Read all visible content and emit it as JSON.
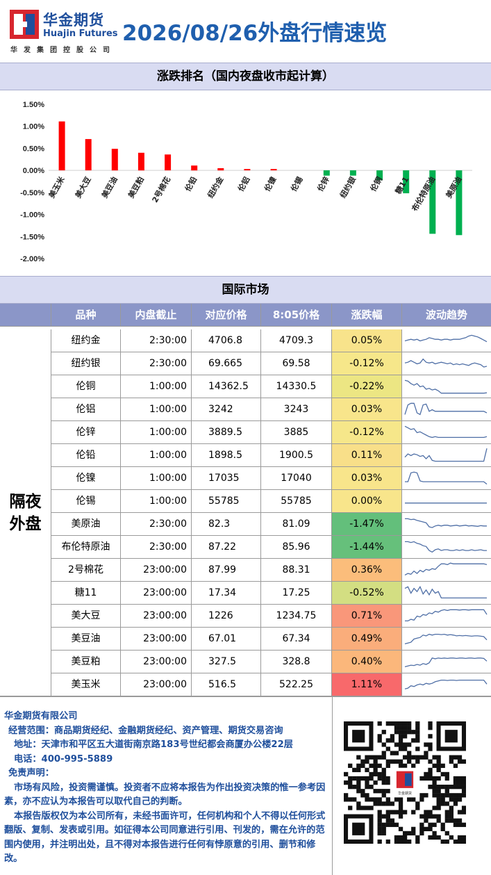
{
  "header": {
    "company_cn": "华金期货",
    "company_en": "Huajin Futures",
    "company_tag": "华发集团控股公司",
    "report_title": "2026/08/26外盘行情速览"
  },
  "ranking": {
    "title": "涨跌排名（国内夜盘收市起计算）"
  },
  "chart_data": {
    "type": "bar",
    "categories": [
      "美玉米",
      "美大豆",
      "美豆油",
      "美豆粕",
      "2号棉花",
      "伦铅",
      "纽约金",
      "伦铝",
      "伦镍",
      "伦锡",
      "伦锌",
      "纽约银",
      "伦铜",
      "糖11",
      "布伦特原油",
      "美原油"
    ],
    "values": [
      1.11,
      0.71,
      0.49,
      0.4,
      0.36,
      0.11,
      0.05,
      0.03,
      0.03,
      0.0,
      -0.12,
      -0.12,
      -0.22,
      -0.52,
      -1.44,
      -1.47
    ],
    "ylim": [
      -2.0,
      1.5
    ],
    "yticks": [
      "1.50%",
      "1.00%",
      "0.50%",
      "0.00%",
      "-0.50%",
      "-1.00%",
      "-1.50%",
      "-2.00%"
    ],
    "ytick_values": [
      1.5,
      1.0,
      0.5,
      0.0,
      -0.5,
      -1.0,
      -1.5,
      -2.0
    ],
    "positive_color": "#ff0000",
    "negative_color": "#00b050",
    "grid": false
  },
  "intl": {
    "title": "国际市场",
    "group_label": "隔夜外盘",
    "headers": [
      "",
      "品种",
      "内盘截止",
      "对应价格",
      "8:05价格",
      "涨跌幅",
      "波动趋势"
    ],
    "rows": [
      {
        "name": "纽约金",
        "cutoff": "2:30:00",
        "ref_price": "4706.8",
        "price_805": "4709.3",
        "change": "0.05%",
        "change_value": 0.05,
        "color": "#f8e38b",
        "trend": [
          0.5,
          0.55,
          0.6,
          0.55,
          0.6,
          0.5,
          0.55,
          0.6,
          0.7,
          0.65,
          0.6,
          0.6,
          0.55,
          0.6,
          0.6,
          0.55,
          0.6,
          0.6,
          0.6,
          0.65,
          0.7,
          0.8,
          0.85,
          0.8,
          0.75,
          0.65,
          0.55,
          0.45
        ]
      },
      {
        "name": "纽约银",
        "cutoff": "2:30:00",
        "ref_price": "69.665",
        "price_805": "69.58",
        "change": "-0.12%",
        "change_value": -0.12,
        "color": "#f6e78a",
        "trend": [
          0.55,
          0.6,
          0.7,
          0.6,
          0.5,
          0.55,
          0.8,
          0.6,
          0.55,
          0.6,
          0.5,
          0.55,
          0.6,
          0.55,
          0.5,
          0.55,
          0.45,
          0.5,
          0.45,
          0.5,
          0.45,
          0.4,
          0.5,
          0.55,
          0.5,
          0.45,
          0.3,
          0.35
        ]
      },
      {
        "name": "伦铜",
        "cutoff": "1:00:00",
        "ref_price": "14362.5",
        "price_805": "14330.5",
        "change": "-0.22%",
        "change_value": -0.22,
        "color": "#ece683",
        "trend": [
          0.9,
          0.85,
          0.7,
          0.6,
          0.7,
          0.5,
          0.55,
          0.35,
          0.4,
          0.3,
          0.35,
          0.25,
          0.1,
          0.1,
          0.1,
          0.1,
          0.1,
          0.1,
          0.1,
          0.1,
          0.1,
          0.1,
          0.1,
          0.1,
          0.1,
          0.1,
          0.1,
          0.12
        ]
      },
      {
        "name": "伦铝",
        "cutoff": "1:00:00",
        "ref_price": "3242",
        "price_805": "3243",
        "change": "0.03%",
        "change_value": 0.03,
        "color": "#f8e58b",
        "trend": [
          0.2,
          0.8,
          0.9,
          0.9,
          0.3,
          0.2,
          0.8,
          0.85,
          0.4,
          0.5,
          0.4,
          0.4,
          0.4,
          0.4,
          0.4,
          0.4,
          0.4,
          0.4,
          0.4,
          0.4,
          0.4,
          0.4,
          0.4,
          0.4,
          0.4,
          0.4,
          0.4,
          0.3
        ]
      },
      {
        "name": "伦锌",
        "cutoff": "1:00:00",
        "ref_price": "3889.5",
        "price_805": "3885",
        "change": "-0.12%",
        "change_value": -0.12,
        "color": "#f6e78a",
        "trend": [
          0.9,
          0.8,
          0.7,
          0.75,
          0.5,
          0.55,
          0.45,
          0.35,
          0.25,
          0.2,
          0.25,
          0.2,
          0.2,
          0.2,
          0.2,
          0.2,
          0.2,
          0.2,
          0.2,
          0.2,
          0.2,
          0.2,
          0.2,
          0.2,
          0.2,
          0.2,
          0.2,
          0.25
        ]
      },
      {
        "name": "伦铅",
        "cutoff": "1:00:00",
        "ref_price": "1898.5",
        "price_805": "1900.5",
        "change": "0.11%",
        "change_value": 0.11,
        "color": "#f8df89",
        "trend": [
          0.4,
          0.6,
          0.5,
          0.6,
          0.55,
          0.45,
          0.5,
          0.3,
          0.5,
          0.2,
          0.15,
          0.15,
          0.15,
          0.15,
          0.15,
          0.15,
          0.15,
          0.15,
          0.15,
          0.15,
          0.15,
          0.15,
          0.15,
          0.15,
          0.15,
          0.15,
          0.15,
          0.95
        ]
      },
      {
        "name": "伦镍",
        "cutoff": "1:00:00",
        "ref_price": "17035",
        "price_805": "17040",
        "change": "0.03%",
        "change_value": 0.03,
        "color": "#f8e58b",
        "trend": [
          0.3,
          0.3,
          0.85,
          0.9,
          0.85,
          0.35,
          0.3,
          0.3,
          0.3,
          0.3,
          0.3,
          0.3,
          0.3,
          0.3,
          0.3,
          0.3,
          0.3,
          0.3,
          0.3,
          0.3,
          0.3,
          0.3,
          0.3,
          0.3,
          0.3,
          0.3,
          0.3,
          0.15
        ]
      },
      {
        "name": "伦锡",
        "cutoff": "1:00:00",
        "ref_price": "55785",
        "price_805": "55785",
        "change": "0.00%",
        "change_value": 0.0,
        "color": "#f8e58b",
        "trend": [
          0.4,
          0.4,
          0.4,
          0.4,
          0.4,
          0.4,
          0.4,
          0.4,
          0.4,
          0.4,
          0.4,
          0.4,
          0.4,
          0.4,
          0.4,
          0.4,
          0.4,
          0.4,
          0.4,
          0.4,
          0.4,
          0.4,
          0.4,
          0.4,
          0.4,
          0.4,
          0.4,
          0.4
        ]
      },
      {
        "name": "美原油",
        "cutoff": "2:30:00",
        "ref_price": "82.3",
        "price_805": "81.09",
        "change": "-1.47%",
        "change_value": -1.47,
        "color": "#63bf7b",
        "trend": [
          0.85,
          0.85,
          0.8,
          0.82,
          0.75,
          0.7,
          0.65,
          0.6,
          0.35,
          0.3,
          0.4,
          0.45,
          0.4,
          0.45,
          0.45,
          0.4,
          0.42,
          0.45,
          0.4,
          0.42,
          0.45,
          0.4,
          0.42,
          0.4,
          0.38,
          0.42,
          0.4,
          0.4
        ]
      },
      {
        "name": "布伦特原油",
        "cutoff": "2:30:00",
        "ref_price": "87.22",
        "price_805": "85.96",
        "change": "-1.44%",
        "change_value": -1.44,
        "color": "#66c07b",
        "trend": [
          0.85,
          0.85,
          0.8,
          0.85,
          0.75,
          0.7,
          0.6,
          0.55,
          0.3,
          0.2,
          0.35,
          0.4,
          0.3,
          0.35,
          0.35,
          0.3,
          0.3,
          0.35,
          0.3,
          0.35,
          0.3,
          0.3,
          0.35,
          0.3,
          0.32,
          0.35,
          0.3,
          0.3
        ]
      },
      {
        "name": "2号棉花",
        "cutoff": "23:00:00",
        "ref_price": "87.99",
        "price_805": "88.31",
        "change": "0.36%",
        "change_value": 0.36,
        "color": "#fbbd7b",
        "trend": [
          0.2,
          0.3,
          0.25,
          0.45,
          0.3,
          0.5,
          0.4,
          0.55,
          0.5,
          0.6,
          0.55,
          0.75,
          0.9,
          0.9,
          0.85,
          0.95,
          0.9,
          0.9,
          0.9,
          0.9,
          0.9,
          0.9,
          0.9,
          0.9,
          0.9,
          0.9,
          0.9,
          0.85
        ]
      },
      {
        "name": "糖11",
        "cutoff": "23:00:00",
        "ref_price": "17.34",
        "price_805": "17.25",
        "change": "-0.52%",
        "change_value": -0.52,
        "color": "#d3de82",
        "trend": [
          0.8,
          0.9,
          0.5,
          0.8,
          0.6,
          0.9,
          0.45,
          0.7,
          0.4,
          0.75,
          0.5,
          0.6,
          0.2,
          0.2,
          0.2,
          0.2,
          0.2,
          0.2,
          0.2,
          0.2,
          0.2,
          0.2,
          0.2,
          0.2,
          0.2,
          0.2,
          0.2,
          0.2
        ]
      },
      {
        "name": "美大豆",
        "cutoff": "23:00:00",
        "ref_price": "1226",
        "price_805": "1234.75",
        "change": "0.71%",
        "change_value": 0.71,
        "color": "#f9977a",
        "trend": [
          0.2,
          0.2,
          0.3,
          0.25,
          0.5,
          0.45,
          0.6,
          0.55,
          0.7,
          0.65,
          0.8,
          0.75,
          0.85,
          0.9,
          0.85,
          0.9,
          0.9,
          0.9,
          0.88,
          0.9,
          0.9,
          0.88,
          0.9,
          0.9,
          0.9,
          0.9,
          0.9,
          0.6
        ]
      },
      {
        "name": "美豆油",
        "cutoff": "23:00:00",
        "ref_price": "67.01",
        "price_805": "67.34",
        "change": "0.49%",
        "change_value": 0.49,
        "color": "#faad7b",
        "trend": [
          0.2,
          0.25,
          0.3,
          0.5,
          0.55,
          0.6,
          0.75,
          0.7,
          0.8,
          0.75,
          0.8,
          0.8,
          0.78,
          0.8,
          0.75,
          0.78,
          0.75,
          0.7,
          0.72,
          0.7,
          0.72,
          0.7,
          0.68,
          0.7,
          0.7,
          0.68,
          0.65,
          0.45
        ]
      },
      {
        "name": "美豆粕",
        "cutoff": "23:00:00",
        "ref_price": "327.5",
        "price_805": "328.8",
        "change": "0.40%",
        "change_value": 0.4,
        "color": "#fbb77b",
        "trend": [
          0.2,
          0.25,
          0.3,
          0.28,
          0.35,
          0.3,
          0.4,
          0.35,
          0.45,
          0.75,
          0.7,
          0.75,
          0.72,
          0.75,
          0.72,
          0.75,
          0.75,
          0.72,
          0.75,
          0.75,
          0.72,
          0.75,
          0.75,
          0.72,
          0.75,
          0.75,
          0.72,
          0.55
        ]
      },
      {
        "name": "美玉米",
        "cutoff": "23:00:00",
        "ref_price": "516.5",
        "price_805": "522.25",
        "change": "1.11%",
        "change_value": 1.11,
        "color": "#f8696b",
        "trend": [
          0.25,
          0.3,
          0.45,
          0.4,
          0.5,
          0.55,
          0.5,
          0.6,
          0.55,
          0.6,
          0.7,
          0.75,
          0.8,
          0.8,
          0.78,
          0.8,
          0.8,
          0.78,
          0.8,
          0.8,
          0.8,
          0.8,
          0.8,
          0.8,
          0.8,
          0.8,
          0.8,
          0.55
        ]
      }
    ]
  },
  "footer": {
    "company": "华金期货有限公司",
    "scope": "经营范围：商品期货经纪、金融期货经纪、资产管理、期货交易咨询",
    "address": "地址：天津市和平区五大道街南京路183号世纪都会商厦办公楼22层",
    "phone": "电话：400-995-5889",
    "disclaimer_title": "免责声明：",
    "disclaimer_1": "市场有风险，投资需谨慎。投资者不应将本报告为作出投资决策的惟一参考因素，亦不应认为本报告可以取代自己的判断。",
    "disclaimer_2": "本报告版权仅为本公司所有，未经书面许可，任何机构和个人不得以任何形式翻版、复制、发表或引用。如征得本公司同意进行引用、刊发的，需在允许的范围内使用，并注明出处，且不得对本报告进行任何有悖原意的引用、删节和修改。",
    "qr_label": "华金期货"
  },
  "colors": {
    "brand_blue": "#1f4f9c",
    "title_blue": "#1f5fae",
    "header_band": "#d9dcf2",
    "table_header": "#8b96c8",
    "logo_red": "#d7262e",
    "sparkline": "#4f6fa6"
  }
}
